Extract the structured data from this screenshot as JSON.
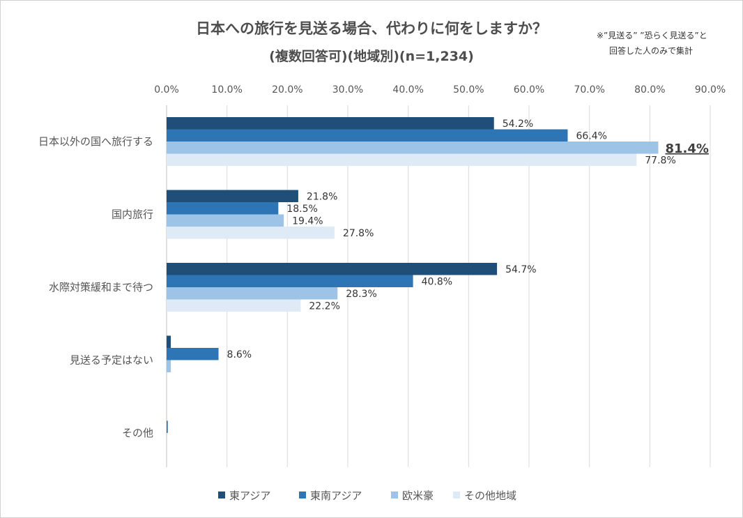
{
  "chart_data": {
    "type": "bar",
    "orientation": "horizontal",
    "title": "日本への旅行を見送る場合、代わりに何をしますか？",
    "subtitle": "(複数回答可)(地域別)(n=1,234)",
    "note_lines": [
      "※”見送る” ”恐らく見送る”と",
      "回答した人のみで集計"
    ],
    "categories": [
      "日本以外の国へ旅行する",
      "国内旅行",
      "水際対策緩和まで待つ",
      "見送る予定はない",
      "その他"
    ],
    "xlim": [
      0,
      90
    ],
    "ticks": [
      "0.0%",
      "10.0%",
      "20.0%",
      "30.0%",
      "40.0%",
      "50.0%",
      "60.0%",
      "70.0%",
      "80.0%",
      "90.0%"
    ],
    "grid": true,
    "legend_position": "bottom",
    "highlight": {
      "series_index": 2,
      "category_index": 0
    },
    "series": [
      {
        "name": "東アジア",
        "color": "#1f4e79",
        "values": [
          54.2,
          21.8,
          54.7,
          0.7,
          0.0
        ],
        "labels": [
          "54.2%",
          "21.8%",
          "54.7%",
          "",
          ""
        ]
      },
      {
        "name": "東南アジア",
        "color": "#2e75b6",
        "values": [
          66.4,
          18.5,
          40.8,
          8.6,
          0.2
        ],
        "labels": [
          "66.4%",
          "18.5%",
          "40.8%",
          "8.6%",
          ""
        ]
      },
      {
        "name": "欧米豪",
        "color": "#9dc3e6",
        "values": [
          81.4,
          19.4,
          28.3,
          0.7,
          0.0
        ],
        "labels": [
          "81.4%",
          "19.4%",
          "28.3%",
          "",
          ""
        ]
      },
      {
        "name": "その他地域",
        "color": "#deebf7",
        "values": [
          77.8,
          27.8,
          22.2,
          0.0,
          0.0
        ],
        "labels": [
          "77.8%",
          "27.8%",
          "22.2%",
          "",
          ""
        ]
      }
    ]
  }
}
